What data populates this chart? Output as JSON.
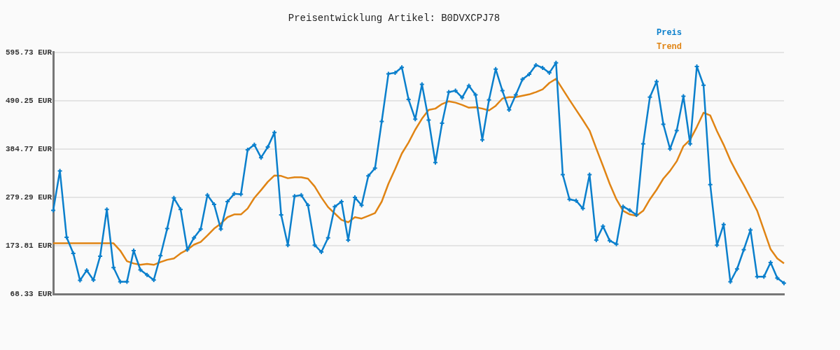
{
  "chart_data": {
    "type": "line",
    "title": "Preisentwicklung Artikel: B0DVXCPJ78",
    "categories": [
      null,
      null,
      null,
      null,
      null,
      null,
      null,
      null,
      null,
      null,
      null,
      null,
      null,
      null,
      null,
      null,
      null,
      null,
      null,
      null,
      null,
      null,
      null,
      null,
      null,
      null,
      null,
      null,
      null,
      null,
      null,
      null,
      null,
      null,
      null,
      null,
      null,
      null,
      null,
      null,
      null,
      null,
      null,
      null,
      null,
      null,
      null,
      null,
      null,
      null,
      null,
      null,
      null,
      null,
      null,
      null,
      null,
      null,
      null,
      null,
      null,
      null,
      null,
      null,
      null,
      null,
      null,
      null,
      null,
      null,
      null,
      null,
      null,
      null,
      null,
      null,
      null,
      null,
      null,
      null,
      null,
      null,
      null,
      null,
      null,
      null,
      null,
      null,
      null,
      null,
      null,
      null,
      null,
      null,
      null,
      null,
      null,
      null,
      null,
      null,
      null,
      null,
      null,
      null,
      null,
      null,
      null,
      null,
      null,
      null
    ],
    "series": [
      {
        "name": "Preis",
        "color": "#0a7fcc",
        "marker": "cross",
        "values": [
          251,
          337,
          192,
          157,
          98,
          120,
          99,
          151,
          253,
          126,
          95,
          95,
          163,
          121,
          110,
          99,
          152,
          211,
          278,
          253,
          165,
          191,
          210,
          284,
          264,
          210,
          270,
          287,
          286,
          383,
          394,
          366,
          389,
          421,
          241,
          175,
          282,
          284,
          262,
          175,
          160,
          191,
          259,
          270,
          186,
          279,
          262,
          326,
          343,
          445,
          549,
          551,
          563,
          493,
          450,
          526,
          448,
          355,
          441,
          509,
          512,
          497,
          523,
          503,
          405,
          492,
          559,
          512,
          470,
          503,
          537,
          548,
          568,
          562,
          551,
          573,
          329,
          275,
          272,
          255,
          329,
          186,
          216,
          185,
          177,
          259,
          251,
          241,
          396,
          498,
          532,
          439,
          385,
          425,
          500,
          396,
          565,
          524,
          307,
          175,
          220,
          95,
          123,
          165,
          208,
          106,
          106,
          137,
          103,
          92
        ]
      },
      {
        "name": "Trend",
        "color": "#e08414",
        "marker": "none",
        "values": [
          179,
          179,
          179,
          179,
          179,
          179,
          179,
          179,
          179,
          179,
          163,
          140,
          135,
          132,
          134,
          132,
          138,
          143,
          146,
          157,
          165,
          176,
          182,
          196,
          211,
          222,
          236,
          242,
          242,
          255,
          278,
          295,
          313,
          327,
          326,
          321,
          323,
          323,
          320,
          303,
          279,
          258,
          244,
          230,
          225,
          236,
          233,
          239,
          245,
          270,
          309,
          341,
          375,
          399,
          427,
          451,
          470,
          473,
          483,
          489,
          486,
          481,
          475,
          476,
          473,
          469,
          479,
          495,
          498,
          498,
          501,
          504,
          509,
          515,
          529,
          538,
          515,
          492,
          470,
          448,
          425,
          386,
          348,
          309,
          275,
          250,
          242,
          239,
          250,
          275,
          296,
          320,
          337,
          358,
          391,
          405,
          433,
          464,
          458,
          424,
          394,
          360,
          332,
          306,
          278,
          250,
          208,
          166,
          146,
          135
        ]
      }
    ],
    "ylim": [
      68.33,
      595.73
    ],
    "yticks": [
      {
        "value": 68.33,
        "label": "68.33 EUR"
      },
      {
        "value": 173.81,
        "label": "173.81 EUR"
      },
      {
        "value": 279.29,
        "label": "279.29 EUR"
      },
      {
        "value": 384.77,
        "label": "384.77 EUR"
      },
      {
        "value": 490.25,
        "label": "490.25 EUR"
      },
      {
        "value": 595.73,
        "label": "595.73 EUR"
      }
    ],
    "grid": "y",
    "legend": "top right",
    "tick_labels": "y",
    "line_style": "solid"
  }
}
